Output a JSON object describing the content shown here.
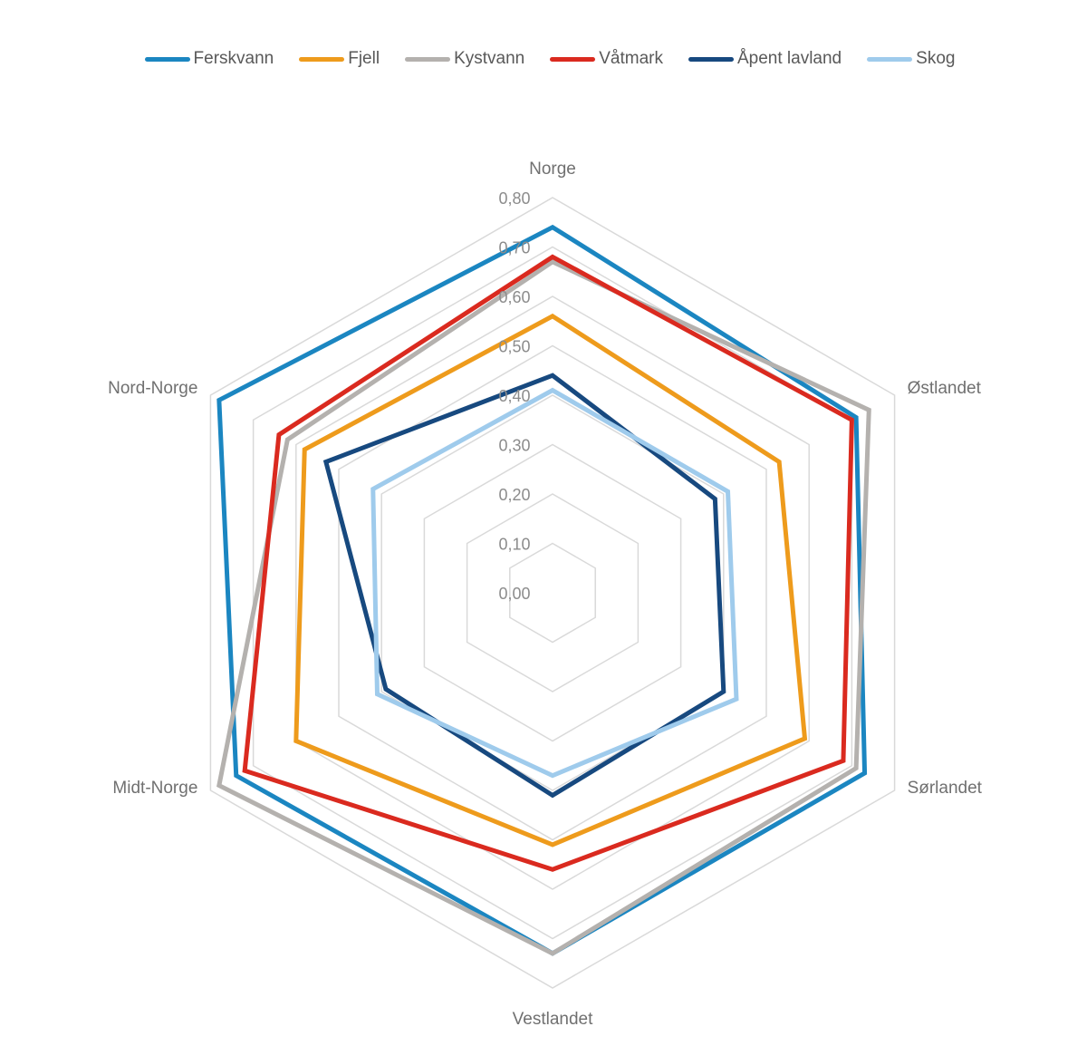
{
  "chart_data": {
    "type": "radar",
    "title": "",
    "categories": [
      "Norge",
      "Østlandet",
      "Sørlandet",
      "Vestlandet",
      "Midt-Norge",
      "Nord-Norge"
    ],
    "rlim": [
      0,
      0.8
    ],
    "ticks": [
      0,
      0.1,
      0.2,
      0.3,
      0.4,
      0.5,
      0.6,
      0.7,
      0.8
    ],
    "tick_labels": [
      "0,00",
      "0,10",
      "0,20",
      "0,30",
      "0,40",
      "0,50",
      "0,60",
      "0,70",
      "0,80"
    ],
    "grid": true,
    "legend_position": "top",
    "series": [
      {
        "name": "Ferskvann",
        "color": "#1B86C1",
        "values": [
          0.74,
          0.71,
          0.73,
          0.73,
          0.74,
          0.78
        ]
      },
      {
        "name": "Fjell",
        "color": "#EE9B1C",
        "values": [
          0.56,
          0.53,
          0.59,
          0.51,
          0.6,
          0.58
        ]
      },
      {
        "name": "Kystvann",
        "color": "#B4B1AE",
        "values": [
          0.67,
          0.74,
          0.71,
          0.73,
          0.78,
          0.62
        ]
      },
      {
        "name": "Våtmark",
        "color": "#DA2A1F",
        "values": [
          0.68,
          0.7,
          0.68,
          0.56,
          0.72,
          0.64
        ]
      },
      {
        "name": "Åpent lavland",
        "color": "#17497F",
        "values": [
          0.44,
          0.38,
          0.4,
          0.41,
          0.39,
          0.53
        ]
      },
      {
        "name": "Skog",
        "color": "#9FCBEC",
        "values": [
          0.41,
          0.41,
          0.43,
          0.37,
          0.41,
          0.42
        ]
      }
    ]
  }
}
